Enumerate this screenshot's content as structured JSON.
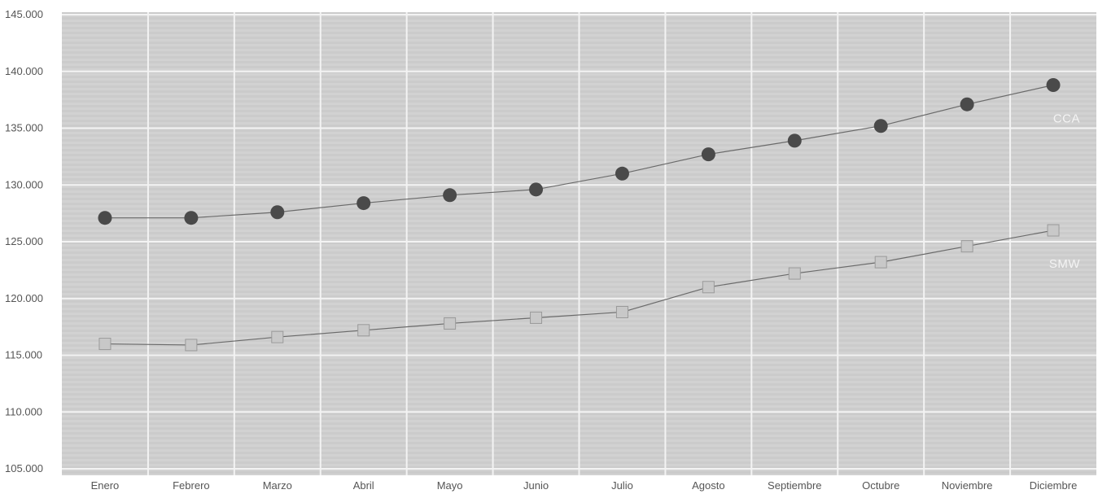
{
  "chart_data": {
    "type": "line",
    "categories": [
      "Enero",
      "Febrero",
      "Marzo",
      "Abril",
      "Mayo",
      "Junio",
      "Julio",
      "Agosto",
      "Septiembre",
      "Octubre",
      "Noviembre",
      "Diciembre"
    ],
    "ylim": [
      105000,
      145000
    ],
    "yticks": [
      "105.000",
      "110.000",
      "115.000",
      "120.000",
      "125.000",
      "130.000",
      "135.000",
      "140.000",
      "145.000"
    ],
    "grid": true,
    "series": [
      {
        "name": "CCA",
        "marker": "circle",
        "color": "#4a4a4a",
        "values": [
          127100,
          127100,
          127600,
          128400,
          129100,
          129600,
          131000,
          132700,
          133900,
          135200,
          137100,
          138800
        ]
      },
      {
        "name": "SMW",
        "marker": "square",
        "color": "#c8c8c8",
        "values": [
          116000,
          115900,
          116600,
          117200,
          117800,
          118300,
          118800,
          121000,
          122200,
          123200,
          124600,
          126000
        ]
      }
    ]
  },
  "colors": {
    "plot_background": "#d2d2d2",
    "grid_line": "#f3f3f3",
    "line": "#6a6a6a",
    "text": "#555555"
  }
}
